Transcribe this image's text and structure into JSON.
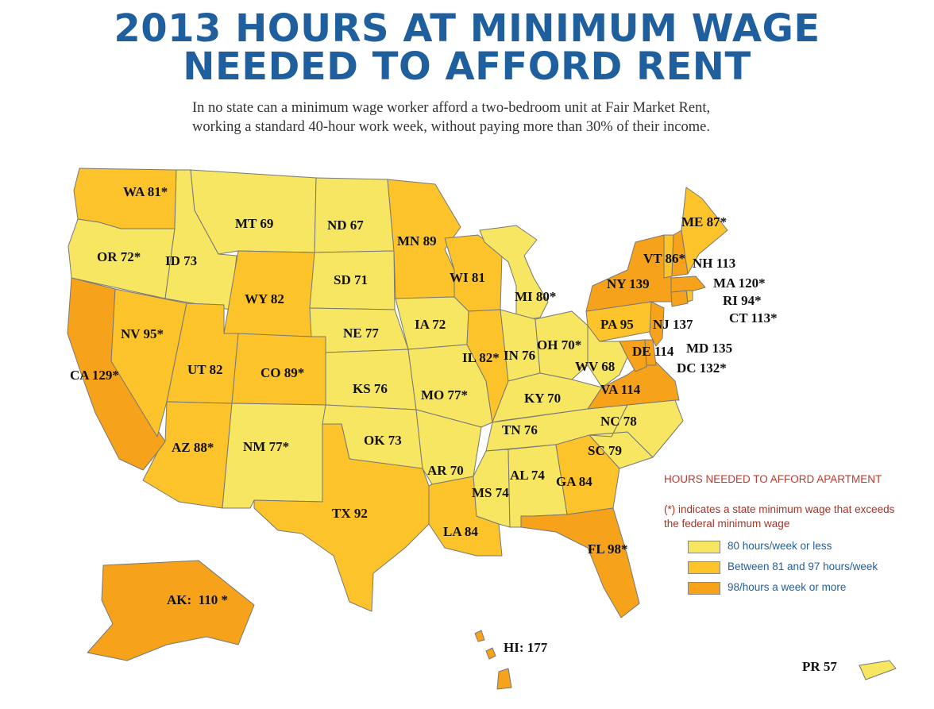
{
  "title_line1": "2013 HOURS AT MINIMUM WAGE",
  "title_line2": "NEEDED TO AFFORD RENT",
  "subtitle_line1": "In no state can a minimum wage worker afford a two-bedroom unit at Fair Market Rent,",
  "subtitle_line2": "working a standard 40-hour work week, without paying more than 30% of their income.",
  "legend": {
    "title": "HOURS NEEDED TO AFFORD APARTMENT",
    "note_line1": "(*) indicates a state minimum wage that exceeds",
    "note_line2": "the federal minimum wage",
    "items": [
      {
        "label": "80 hours/week or less",
        "color": "#f7e661"
      },
      {
        "label": "Between 81 and 97 hours/week",
        "color": "#fcc32b"
      },
      {
        "label": "98/hours a week or more",
        "color": "#f7a21b"
      }
    ]
  },
  "states": [
    {
      "code": "WA",
      "text": "WA 81*",
      "hours": 81,
      "state_min_wage": true
    },
    {
      "code": "OR",
      "text": "OR 72*",
      "hours": 72,
      "state_min_wage": true
    },
    {
      "code": "CA",
      "text": "CA 129*",
      "hours": 129,
      "state_min_wage": true
    },
    {
      "code": "NV",
      "text": "NV 95*",
      "hours": 95,
      "state_min_wage": true
    },
    {
      "code": "ID",
      "text": "ID 73",
      "hours": 73,
      "state_min_wage": false
    },
    {
      "code": "MT",
      "text": "MT 69",
      "hours": 69,
      "state_min_wage": false
    },
    {
      "code": "WY",
      "text": "WY 82",
      "hours": 82,
      "state_min_wage": false
    },
    {
      "code": "UT",
      "text": "UT 82",
      "hours": 82,
      "state_min_wage": false
    },
    {
      "code": "AZ",
      "text": "AZ 88*",
      "hours": 88,
      "state_min_wage": true
    },
    {
      "code": "CO",
      "text": "CO 89*",
      "hours": 89,
      "state_min_wage": true
    },
    {
      "code": "NM",
      "text": "NM 77*",
      "hours": 77,
      "state_min_wage": true
    },
    {
      "code": "ND",
      "text": "ND 67",
      "hours": 67,
      "state_min_wage": false
    },
    {
      "code": "SD",
      "text": "SD 71",
      "hours": 71,
      "state_min_wage": false
    },
    {
      "code": "NE",
      "text": "NE 77",
      "hours": 77,
      "state_min_wage": false
    },
    {
      "code": "KS",
      "text": "KS 76",
      "hours": 76,
      "state_min_wage": false
    },
    {
      "code": "OK",
      "text": "OK 73",
      "hours": 73,
      "state_min_wage": false
    },
    {
      "code": "TX",
      "text": "TX 92",
      "hours": 92,
      "state_min_wage": false
    },
    {
      "code": "MN",
      "text": "MN 89",
      "hours": 89,
      "state_min_wage": false
    },
    {
      "code": "IA",
      "text": "IA 72",
      "hours": 72,
      "state_min_wage": false
    },
    {
      "code": "MO",
      "text": "MO 77*",
      "hours": 77,
      "state_min_wage": true
    },
    {
      "code": "AR",
      "text": "AR 70",
      "hours": 70,
      "state_min_wage": false
    },
    {
      "code": "LA",
      "text": "LA 84",
      "hours": 84,
      "state_min_wage": false
    },
    {
      "code": "WI",
      "text": "WI 81",
      "hours": 81,
      "state_min_wage": false
    },
    {
      "code": "IL",
      "text": "IL 82*",
      "hours": 82,
      "state_min_wage": true
    },
    {
      "code": "MI",
      "text": "MI 80*",
      "hours": 80,
      "state_min_wage": true
    },
    {
      "code": "IN",
      "text": "IN 76",
      "hours": 76,
      "state_min_wage": false
    },
    {
      "code": "OH",
      "text": "OH 70*",
      "hours": 70,
      "state_min_wage": true
    },
    {
      "code": "KY",
      "text": "KY 70",
      "hours": 70,
      "state_min_wage": false
    },
    {
      "code": "TN",
      "text": "TN 76",
      "hours": 76,
      "state_min_wage": false
    },
    {
      "code": "MS",
      "text": "MS 74",
      "hours": 74,
      "state_min_wage": false
    },
    {
      "code": "AL",
      "text": "AL 74",
      "hours": 74,
      "state_min_wage": false
    },
    {
      "code": "GA",
      "text": "GA 84",
      "hours": 84,
      "state_min_wage": false
    },
    {
      "code": "FL",
      "text": "FL 98*",
      "hours": 98,
      "state_min_wage": true
    },
    {
      "code": "SC",
      "text": "SC 79",
      "hours": 79,
      "state_min_wage": false
    },
    {
      "code": "NC",
      "text": "NC 78",
      "hours": 78,
      "state_min_wage": false
    },
    {
      "code": "VA",
      "text": "VA 114",
      "hours": 114,
      "state_min_wage": false
    },
    {
      "code": "WV",
      "text": "WV 68",
      "hours": 68,
      "state_min_wage": false
    },
    {
      "code": "PA",
      "text": "PA 95",
      "hours": 95,
      "state_min_wage": false
    },
    {
      "code": "NY",
      "text": "NY 139",
      "hours": 139,
      "state_min_wage": false
    },
    {
      "code": "NJ",
      "text": "NJ 137",
      "hours": 137,
      "state_min_wage": false
    },
    {
      "code": "DE",
      "text": "DE 114",
      "hours": 114,
      "state_min_wage": false
    },
    {
      "code": "MD",
      "text": "MD 135",
      "hours": 135,
      "state_min_wage": false
    },
    {
      "code": "DC",
      "text": "DC 132*",
      "hours": 132,
      "state_min_wage": true
    },
    {
      "code": "CT",
      "text": "CT 113*",
      "hours": 113,
      "state_min_wage": true
    },
    {
      "code": "RI",
      "text": "RI 94*",
      "hours": 94,
      "state_min_wage": true
    },
    {
      "code": "MA",
      "text": "MA 120*",
      "hours": 120,
      "state_min_wage": true
    },
    {
      "code": "VT",
      "text": "VT 86*",
      "hours": 86,
      "state_min_wage": true
    },
    {
      "code": "NH",
      "text": "NH 113",
      "hours": 113,
      "state_min_wage": false
    },
    {
      "code": "ME",
      "text": "ME 87*",
      "hours": 87,
      "state_min_wage": true
    },
    {
      "code": "AK",
      "text": "AK:  110 *",
      "hours": 110,
      "state_min_wage": true
    },
    {
      "code": "HI",
      "text": "HI: 177",
      "hours": 177,
      "state_min_wage": false
    },
    {
      "code": "PR",
      "text": "PR 57",
      "hours": 57,
      "state_min_wage": false
    }
  ]
}
